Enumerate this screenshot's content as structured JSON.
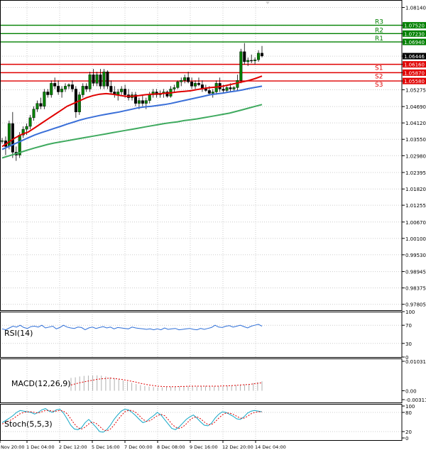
{
  "colors": {
    "background": "#ffffff",
    "grid": "#cccccc",
    "border": "#000000",
    "bull_candle": "#008000",
    "bear_candle": "#000000",
    "wick": "#000000",
    "ma_fast": "#e00000",
    "ma_mid": "#3a6fd8",
    "ma_slow": "#3faa5f",
    "resistance": "#008000",
    "support": "#e00000",
    "price_box": "#000000",
    "rsi": "#2e6fd8",
    "macd_hist": "#b0b0b0",
    "macd_signal": "#e00000",
    "stoch_k": "#12a7c6",
    "stoch_d": "#e00000"
  },
  "chart_data": [
    {
      "type": "candlestick",
      "title": "",
      "instrument_price_label": "1.06446",
      "current_price": 1.06446,
      "ylim": [
        0.976,
        1.084
      ],
      "y_ticks": [
        "1.08140",
        "1.07520",
        "1.07230",
        "1.06940",
        "1.06446",
        "1.06160",
        "1.05870",
        "1.05580",
        "1.05275",
        "1.04690",
        "1.04120",
        "1.03550",
        "1.02980",
        "1.02395",
        "1.01820",
        "1.01255",
        "1.00670",
        "1.00100",
        "0.99530",
        "0.98945",
        "0.98375",
        "0.97805"
      ],
      "x_tick_labels": [
        "Nov 20:00",
        "1 Dec 04:00",
        "2 Dec 12:00",
        "5 Dec 16:00",
        "7 Dec 00:00",
        "8 Dec 08:00",
        "9 Dec 16:00",
        "12 Dec 20:00",
        "14 Dec 04:00"
      ],
      "levels": [
        {
          "name": "R3",
          "value": 1.0752,
          "label": "1.07520",
          "kind": "resistance"
        },
        {
          "name": "R2",
          "value": 1.0723,
          "label": "1.07230",
          "kind": "resistance"
        },
        {
          "name": "R1",
          "value": 1.0694,
          "label": "1.06940",
          "kind": "resistance"
        },
        {
          "name": "S1",
          "value": 1.0616,
          "label": "1.06160",
          "kind": "support"
        },
        {
          "name": "S2",
          "value": 1.0587,
          "label": "1.05870",
          "kind": "support"
        },
        {
          "name": "S3",
          "value": 1.0558,
          "label": "1.05580",
          "kind": "support"
        }
      ],
      "candles": [
        [
          1.035,
          1.036,
          1.034,
          1.035
        ],
        [
          1.035,
          1.0365,
          1.03,
          1.033
        ],
        [
          1.033,
          1.042,
          1.032,
          1.041
        ],
        [
          1.041,
          1.045,
          1.029,
          1.031
        ],
        [
          1.031,
          1.033,
          1.028,
          1.03
        ],
        [
          1.03,
          1.038,
          1.029,
          1.037
        ],
        [
          1.037,
          1.04,
          1.036,
          1.039
        ],
        [
          1.039,
          1.041,
          1.037,
          1.04
        ],
        [
          1.04,
          1.044,
          1.039,
          1.043
        ],
        [
          1.043,
          1.047,
          1.042,
          1.046
        ],
        [
          1.046,
          1.049,
          1.045,
          1.048
        ],
        [
          1.048,
          1.05,
          1.046,
          1.047
        ],
        [
          1.047,
          1.053,
          1.046,
          1.052
        ],
        [
          1.052,
          1.053,
          1.05,
          1.051
        ],
        [
          1.051,
          1.056,
          1.05,
          1.055
        ],
        [
          1.055,
          1.057,
          1.053,
          1.054
        ],
        [
          1.054,
          1.056,
          1.051,
          1.052
        ],
        [
          1.052,
          1.054,
          1.05,
          1.053
        ],
        [
          1.053,
          1.055,
          1.052,
          1.054
        ],
        [
          1.054,
          1.055,
          1.053,
          1.0545
        ],
        [
          1.0545,
          1.056,
          1.052,
          1.053
        ],
        [
          1.053,
          1.054,
          1.043,
          1.045
        ],
        [
          1.045,
          1.052,
          1.044,
          1.051
        ],
        [
          1.051,
          1.055,
          1.05,
          1.054
        ],
        [
          1.054,
          1.055,
          1.052,
          1.053
        ],
        [
          1.053,
          1.059,
          1.052,
          1.058
        ],
        [
          1.058,
          1.06,
          1.054,
          1.055
        ],
        [
          1.055,
          1.059,
          1.054,
          1.058
        ],
        [
          1.058,
          1.06,
          1.053,
          1.054
        ],
        [
          1.054,
          1.06,
          1.053,
          1.059
        ],
        [
          1.059,
          1.0595,
          1.053,
          1.054
        ],
        [
          1.054,
          1.056,
          1.051,
          1.052
        ],
        [
          1.052,
          1.054,
          1.05,
          1.051
        ],
        [
          1.051,
          1.053,
          1.049,
          1.052
        ],
        [
          1.052,
          1.054,
          1.051,
          1.053
        ],
        [
          1.053,
          1.0545,
          1.05,
          1.051
        ],
        [
          1.051,
          1.053,
          1.049,
          1.05
        ],
        [
          1.05,
          1.052,
          1.049,
          1.051
        ],
        [
          1.051,
          1.052,
          1.047,
          1.048
        ],
        [
          1.048,
          1.05,
          1.046,
          1.049
        ],
        [
          1.049,
          1.051,
          1.047,
          1.048
        ],
        [
          1.048,
          1.05,
          1.046,
          1.049
        ],
        [
          1.049,
          1.052,
          1.048,
          1.051
        ],
        [
          1.051,
          1.053,
          1.05,
          1.052
        ],
        [
          1.052,
          1.053,
          1.05,
          1.051
        ],
        [
          1.051,
          1.0525,
          1.05,
          1.0515
        ],
        [
          1.0515,
          1.053,
          1.05,
          1.052
        ],
        [
          1.052,
          1.0525,
          1.05,
          1.0505
        ],
        [
          1.0505,
          1.054,
          1.05,
          1.053
        ],
        [
          1.053,
          1.0545,
          1.052,
          1.0535
        ],
        [
          1.0535,
          1.056,
          1.053,
          1.0555
        ],
        [
          1.0555,
          1.057,
          1.054,
          1.056
        ],
        [
          1.056,
          1.058,
          1.055,
          1.057
        ],
        [
          1.057,
          1.059,
          1.055,
          1.0555
        ],
        [
          1.0555,
          1.057,
          1.053,
          1.054
        ],
        [
          1.054,
          1.056,
          1.053,
          1.055
        ],
        [
          1.055,
          1.057,
          1.054,
          1.0545
        ],
        [
          1.0545,
          1.056,
          1.052,
          1.053
        ],
        [
          1.053,
          1.0545,
          1.052,
          1.0525
        ],
        [
          1.0525,
          1.054,
          1.051,
          1.0515
        ],
        [
          1.0515,
          1.053,
          1.05,
          1.052
        ],
        [
          1.052,
          1.056,
          1.051,
          1.055
        ],
        [
          1.055,
          1.057,
          1.052,
          1.053
        ],
        [
          1.053,
          1.0545,
          1.0515,
          1.0525
        ],
        [
          1.0525,
          1.054,
          1.052,
          1.0535
        ],
        [
          1.0535,
          1.055,
          1.052,
          1.053
        ],
        [
          1.053,
          1.054,
          1.052,
          1.0535
        ],
        [
          1.0535,
          1.058,
          1.0525,
          1.056
        ],
        [
          1.056,
          1.067,
          1.055,
          1.066
        ],
        [
          1.066,
          1.069,
          1.0615,
          1.0625
        ],
        [
          1.0625,
          1.064,
          1.061,
          1.063
        ],
        [
          1.063,
          1.065,
          1.062,
          1.0628
        ],
        [
          1.0628,
          1.064,
          1.0615,
          1.0632
        ],
        [
          1.0632,
          1.0665,
          1.0625,
          1.0655
        ],
        [
          1.0655,
          1.068,
          1.064,
          1.0645
        ]
      ],
      "ma_fast": [
        1.033,
        1.0345,
        1.036,
        1.0372,
        1.038,
        1.0395,
        1.041,
        1.0425,
        1.044,
        1.0455,
        1.047,
        1.048,
        1.049,
        1.05,
        1.0507,
        1.0512,
        1.0514,
        1.0512,
        1.0508,
        1.0505,
        1.0505,
        1.0507,
        1.051,
        1.0512,
        1.0513,
        1.0515,
        1.0517,
        1.052,
        1.0522,
        1.0524,
        1.0528,
        1.0532,
        1.0535,
        1.0537,
        1.054,
        1.0545,
        1.055,
        1.0555,
        1.056,
        1.0567,
        1.0575
      ],
      "ma_mid": [
        1.032,
        1.033,
        1.034,
        1.035,
        1.036,
        1.037,
        1.0378,
        1.0385,
        1.0393,
        1.04,
        1.0408,
        1.0415,
        1.0422,
        1.0428,
        1.0433,
        1.0438,
        1.0442,
        1.0446,
        1.045,
        1.0455,
        1.046,
        1.0465,
        1.0468,
        1.047,
        1.0473,
        1.0476,
        1.048,
        1.0485,
        1.049,
        1.0495,
        1.05,
        1.0505,
        1.051,
        1.0513,
        1.0516,
        1.052,
        1.0523,
        1.0527,
        1.0532,
        1.0536,
        1.054
      ],
      "ma_slow": [
        1.029,
        1.0297,
        1.0304,
        1.0311,
        1.0318,
        1.0325,
        1.0331,
        1.0337,
        1.0342,
        1.0346,
        1.035,
        1.0354,
        1.0358,
        1.0362,
        1.0366,
        1.037,
        1.0374,
        1.0378,
        1.0382,
        1.0386,
        1.039,
        1.0394,
        1.0398,
        1.0402,
        1.0406,
        1.041,
        1.0413,
        1.0416,
        1.042,
        1.0423,
        1.0426,
        1.043,
        1.0434,
        1.0438,
        1.0442,
        1.0446,
        1.0452,
        1.0458,
        1.0464,
        1.047,
        1.0476
      ]
    },
    {
      "type": "line",
      "title": "RSI(14)",
      "ylim": [
        0,
        100
      ],
      "y_ticks": [
        "100",
        "70",
        "30",
        "0"
      ],
      "values": [
        62,
        60,
        64,
        68,
        66,
        70,
        65,
        63,
        67,
        68,
        66,
        70,
        64,
        66,
        68,
        62,
        65,
        70,
        66,
        64,
        63,
        66,
        65,
        60,
        64,
        66,
        63,
        65,
        67,
        64,
        66,
        62,
        65,
        64,
        63,
        62,
        66,
        64,
        63,
        62,
        61,
        62,
        60,
        62,
        60,
        64,
        61,
        62,
        63,
        60,
        61,
        62,
        63,
        61,
        60,
        63,
        61,
        63,
        65,
        70,
        66,
        65,
        68,
        69,
        66,
        68,
        70,
        67,
        64,
        68,
        70,
        72,
        68
      ]
    },
    {
      "type": "bar",
      "title": "MACD(12,26,9)",
      "ylim": [
        -0.003113,
        0.010314
      ],
      "y_ticks": [
        "0.010314",
        "0.00",
        "-0.003113"
      ],
      "values": [
        0.0045,
        0.0047,
        0.005,
        0.0052,
        0.0053,
        0.0054,
        0.0054,
        0.0053,
        0.005,
        0.0047,
        0.0044,
        0.004,
        0.0036,
        0.0032,
        0.0028,
        0.0024,
        0.002,
        0.0017,
        0.0015,
        0.0013,
        0.0012,
        0.0012,
        0.0013,
        0.0014,
        0.0015,
        0.0016,
        0.0016,
        0.0016,
        0.0015,
        0.0015,
        0.0016,
        0.0017,
        0.0017,
        0.0016,
        0.0016,
        0.0017,
        0.0018,
        0.0019,
        0.002,
        0.0021,
        0.0022,
        0.0024,
        0.0027,
        0.003,
        0.0033
      ],
      "signal": [
        0.002,
        0.0024,
        0.0028,
        0.0031,
        0.0034,
        0.0037,
        0.004,
        0.0042,
        0.0043,
        0.0044,
        0.0043,
        0.0041,
        0.0039,
        0.0036,
        0.0033,
        0.003,
        0.0026,
        0.0023,
        0.002,
        0.0018,
        0.0016,
        0.0015,
        0.0014,
        0.0014,
        0.0014,
        0.0015,
        0.0015,
        0.0016,
        0.0016,
        0.0016,
        0.0016,
        0.0016,
        0.0016,
        0.0016,
        0.0016,
        0.0017,
        0.0017,
        0.0018,
        0.0019,
        0.002,
        0.0021,
        0.0022,
        0.0024,
        0.0026,
        0.0028
      ]
    },
    {
      "type": "line",
      "title": "Stoch(5,5,3)",
      "ylim": [
        0,
        100
      ],
      "y_ticks": [
        "100",
        "80",
        "20",
        "0"
      ],
      "k": [
        48,
        55,
        62,
        70,
        80,
        86,
        84,
        82,
        80,
        75,
        80,
        88,
        92,
        84,
        80,
        88,
        90,
        78,
        60,
        40,
        28,
        26,
        32,
        48,
        58,
        46,
        34,
        20,
        18,
        26,
        40,
        58,
        72,
        84,
        90,
        88,
        80,
        70,
        58,
        48,
        52,
        62,
        70,
        80,
        72,
        58,
        44,
        30,
        26,
        34,
        46,
        58,
        66,
        72,
        62,
        50,
        40,
        38,
        46,
        62,
        74,
        82,
        80,
        74,
        68,
        60,
        58,
        66,
        78,
        84,
        86,
        84,
        82
      ],
      "d": [
        44,
        48,
        54,
        60,
        68,
        76,
        80,
        82,
        82,
        80,
        78,
        82,
        86,
        86,
        84,
        84,
        86,
        84,
        76,
        60,
        44,
        32,
        28,
        34,
        44,
        50,
        46,
        36,
        26,
        22,
        28,
        40,
        56,
        70,
        82,
        86,
        86,
        80,
        70,
        58,
        52,
        54,
        62,
        70,
        74,
        70,
        58,
        44,
        34,
        30,
        34,
        44,
        56,
        64,
        66,
        60,
        50,
        42,
        42,
        50,
        62,
        72,
        78,
        78,
        74,
        68,
        62,
        62,
        68,
        76,
        80,
        82,
        82
      ]
    }
  ]
}
